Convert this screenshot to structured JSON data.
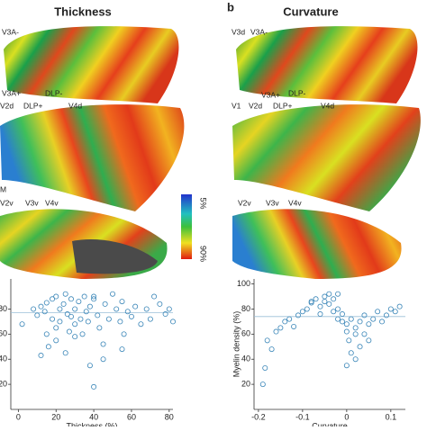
{
  "figure": {
    "panel_label": "b",
    "left_title": "Thickness",
    "right_title": "Curvature",
    "colorbar_top": "5%",
    "colorbar_bottom": "90%",
    "left_areas": [
      "V3A-",
      "V3A+",
      "DLP-",
      "V2d",
      "DLP+",
      "V4d",
      "M",
      "V2v",
      "V3v",
      "V4v"
    ],
    "right_areas": [
      "V3d",
      "V3A-",
      "V3A+",
      "DLP-",
      "V1",
      "V2d",
      "DLP+",
      "V4d",
      "V2v",
      "V3v",
      "V4v"
    ]
  },
  "chart_data": [
    {
      "type": "scatter",
      "xlabel": "Thickness (%)",
      "color": "#3a86b8",
      "x": [
        2,
        8,
        10,
        12,
        14,
        15,
        16,
        18,
        18,
        20,
        20,
        22,
        22,
        24,
        25,
        26,
        27,
        28,
        28,
        30,
        30,
        32,
        33,
        34,
        35,
        36,
        37,
        38,
        40,
        40,
        42,
        43,
        45,
        46,
        48,
        50,
        52,
        54,
        55,
        56,
        58,
        60,
        62,
        65,
        68,
        70,
        72,
        75,
        78,
        80,
        82,
        12,
        15,
        20,
        25,
        30,
        38,
        45,
        55,
        40
      ],
      "values": [
        68,
        80,
        75,
        82,
        78,
        85,
        50,
        72,
        88,
        90,
        65,
        80,
        70,
        84,
        92,
        76,
        62,
        88,
        74,
        80,
        68,
        86,
        72,
        60,
        90,
        78,
        70,
        82,
        18,
        88,
        75,
        65,
        40,
        84,
        72,
        92,
        80,
        70,
        86,
        60,
        78,
        74,
        82,
        68,
        80,
        72,
        90,
        84,
        76,
        80,
        70,
        43,
        60,
        55,
        45,
        58,
        35,
        52,
        48,
        90
      ],
      "reference_line": 77,
      "xlim": [
        -4,
        82
      ],
      "ylim": [
        0,
        104
      ],
      "xticks": [
        0,
        20,
        40,
        60,
        80
      ],
      "yticks": [
        20,
        40,
        60,
        80
      ]
    },
    {
      "type": "scatter",
      "xlabel": "Curvature",
      "ylabel": "Myelin density (%)",
      "color": "#3a86b8",
      "x": [
        -0.19,
        -0.185,
        -0.18,
        -0.17,
        -0.16,
        -0.15,
        -0.14,
        -0.13,
        -0.12,
        -0.11,
        -0.1,
        -0.09,
        -0.08,
        -0.07,
        -0.06,
        -0.05,
        -0.05,
        -0.04,
        -0.04,
        -0.03,
        -0.03,
        -0.02,
        -0.02,
        -0.01,
        -0.01,
        0,
        0,
        0.005,
        0.01,
        0.01,
        0.02,
        0.02,
        0.03,
        0.03,
        0.04,
        0.04,
        0.05,
        0.05,
        0.06,
        0.07,
        0.08,
        0.09,
        0.1,
        0.11,
        0.12,
        -0.06,
        -0.08,
        -0.02,
        0,
        0.02
      ],
      "values": [
        20,
        33,
        55,
        48,
        62,
        65,
        70,
        72,
        66,
        75,
        78,
        80,
        85,
        88,
        82,
        90,
        86,
        92,
        84,
        88,
        78,
        80,
        72,
        70,
        76,
        62,
        68,
        55,
        45,
        72,
        40,
        65,
        50,
        70,
        60,
        75,
        55,
        68,
        72,
        78,
        70,
        75,
        80,
        78,
        82,
        76,
        86,
        92,
        35,
        60
      ],
      "reference_line": 74,
      "xlim": [
        -0.21,
        0.133
      ],
      "ylim": [
        0,
        104
      ],
      "xticks": [
        -0.2,
        -0.1,
        0,
        0.1
      ],
      "yticks": [
        20,
        40,
        60,
        80,
        100
      ]
    }
  ]
}
